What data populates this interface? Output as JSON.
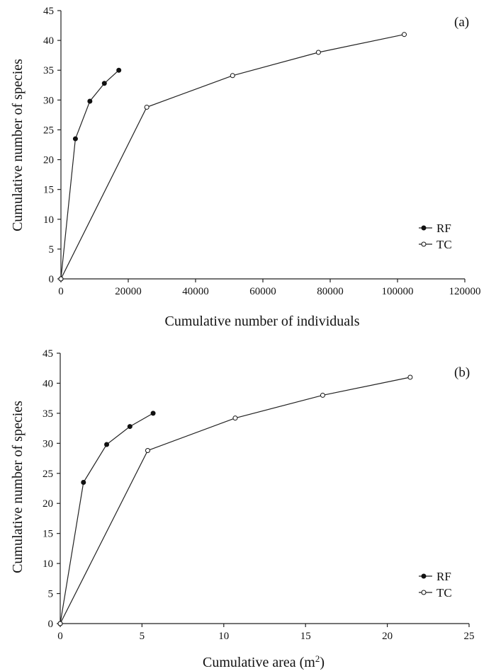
{
  "chart_data": [
    {
      "type": "line",
      "panel_label": "(a)",
      "xlabel": "Cumulative number of individuals",
      "ylabel": "Cumulative number of species",
      "xlim": [
        0,
        120000
      ],
      "ylim": [
        0,
        45
      ],
      "xticks": [
        0,
        20000,
        40000,
        60000,
        80000,
        100000,
        120000
      ],
      "yticks": [
        0,
        5,
        10,
        15,
        20,
        25,
        30,
        35,
        40,
        45
      ],
      "legend_position": "right",
      "series": [
        {
          "name": "RF",
          "marker": "filled-circle",
          "x": [
            0,
            4300,
            8600,
            12900,
            17200
          ],
          "y": [
            0,
            23.5,
            29.8,
            32.8,
            35
          ]
        },
        {
          "name": "TC",
          "marker": "open-circle",
          "x": [
            0,
            25500,
            51000,
            76500,
            102000
          ],
          "y": [
            0,
            28.8,
            34.1,
            38,
            41
          ]
        }
      ]
    },
    {
      "type": "line",
      "panel_label": "(b)",
      "xlabel": "Cumulative area (m",
      "xlabel_sup": "2",
      "xlabel_tail": ")",
      "ylabel": "Cumulative number of species",
      "xlim": [
        0,
        25
      ],
      "ylim": [
        0,
        45
      ],
      "xticks": [
        0,
        5,
        10,
        15,
        20,
        25
      ],
      "yticks": [
        0,
        5,
        10,
        15,
        20,
        25,
        30,
        35,
        40,
        45
      ],
      "legend_position": "bottom-right",
      "series": [
        {
          "name": "RF",
          "marker": "filled-circle",
          "x": [
            0,
            1.42,
            2.84,
            4.26,
            5.68
          ],
          "y": [
            0,
            23.5,
            29.8,
            32.8,
            35
          ]
        },
        {
          "name": "TC",
          "marker": "open-circle",
          "x": [
            0,
            5.35,
            10.7,
            16.05,
            21.4
          ],
          "y": [
            0,
            28.8,
            34.2,
            38,
            41
          ]
        }
      ]
    }
  ]
}
